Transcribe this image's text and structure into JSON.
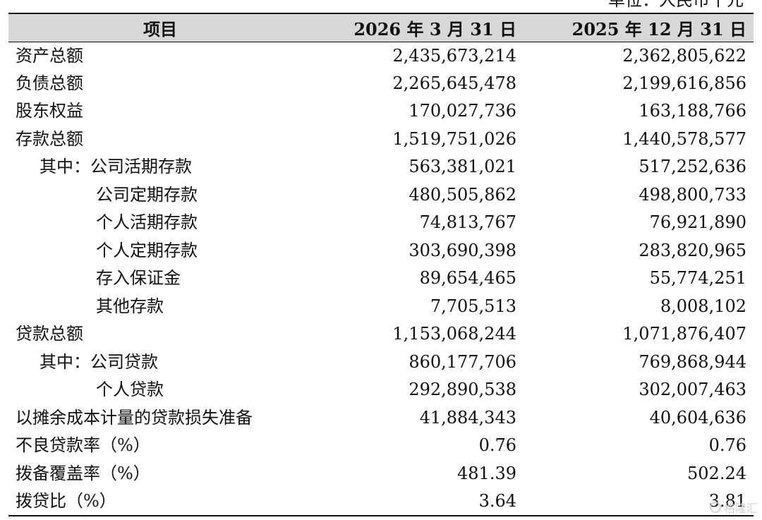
{
  "unit_label": "单位：人民币千元",
  "table": {
    "headers": [
      "项目",
      "2026 年 3 月 31 日",
      "2025 年 12 月 31 日"
    ],
    "rows": [
      {
        "label": "资产总额",
        "v2026": "2,435,673,214",
        "v2025": "2,362,805,622",
        "indent": 0
      },
      {
        "label": "负债总额",
        "v2026": "2,265,645,478",
        "v2025": "2,199,616,856",
        "indent": 0
      },
      {
        "label": "股东权益",
        "v2026": "170,027,736",
        "v2025": "163,188,766",
        "indent": 0
      },
      {
        "label": "存款总额",
        "v2026": "1,519,751,026",
        "v2025": "1,440,578,577",
        "indent": 0
      },
      {
        "label": "其中：公司活期存款",
        "v2026": "563,381,021",
        "v2025": "517,252,636",
        "indent": 1
      },
      {
        "label": "公司定期存款",
        "v2026": "480,505,862",
        "v2025": "498,800,733",
        "indent": 2
      },
      {
        "label": "个人活期存款",
        "v2026": "74,813,767",
        "v2025": "76,921,890",
        "indent": 2
      },
      {
        "label": "个人定期存款",
        "v2026": "303,690,398",
        "v2025": "283,820,965",
        "indent": 2
      },
      {
        "label": "存入保证金",
        "v2026": "89,654,465",
        "v2025": "55,774,251",
        "indent": 2
      },
      {
        "label": "其他存款",
        "v2026": "7,705,513",
        "v2025": "8,008,102",
        "indent": 2
      },
      {
        "label": "贷款总额",
        "v2026": "1,153,068,244",
        "v2025": "1,071,876,407",
        "indent": 0
      },
      {
        "label": "其中：公司贷款",
        "v2026": "860,177,706",
        "v2025": "769,868,944",
        "indent": 1
      },
      {
        "label": "个人贷款",
        "v2026": "292,890,538",
        "v2025": "302,007,463",
        "indent": 2
      },
      {
        "label": "以摊余成本计量的贷款损失准备",
        "v2026": "41,884,343",
        "v2025": "40,604,636",
        "indent": 0
      },
      {
        "label": "不良贷款率（%）",
        "v2026": "0.76",
        "v2025": "0.76",
        "indent": 0
      },
      {
        "label": "拨备覆盖率（%）",
        "v2026": "481.39",
        "v2025": "502.24",
        "indent": 0
      },
      {
        "label": "拨贷比（%）",
        "v2026": "3.64",
        "v2025": "3.81",
        "indent": 0
      }
    ]
  },
  "watermark": {
    "icon": "watermark-logo-icon",
    "text": "格隆汇"
  }
}
